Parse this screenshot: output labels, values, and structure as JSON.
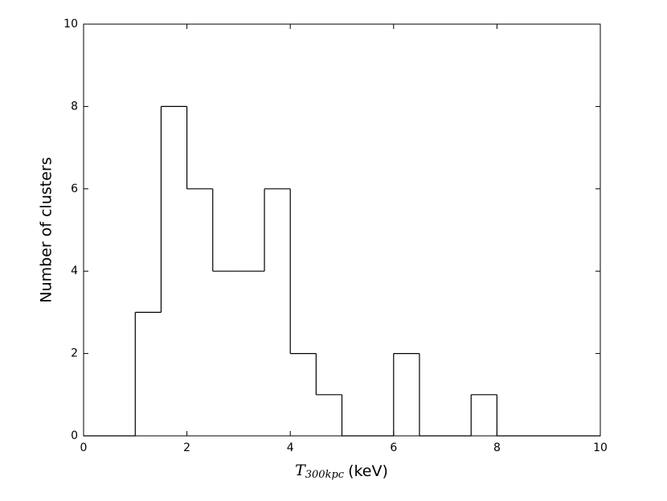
{
  "chart_data": {
    "type": "histogram",
    "bins": [
      0,
      0.5,
      1,
      1.5,
      2,
      2.5,
      3,
      3.5,
      4,
      4.5,
      5,
      5.5,
      6,
      6.5,
      7,
      7.5,
      8,
      8.5,
      9,
      9.5,
      10
    ],
    "values": [
      0,
      0,
      3,
      8,
      6,
      4,
      4,
      6,
      2,
      1,
      0,
      0,
      2,
      0,
      0,
      1,
      0,
      0,
      0,
      0
    ],
    "color": "#000000",
    "xlabel": [
      "T",
      "300kpc",
      "(keV)"
    ],
    "ylabel": "Number of clusters",
    "xlim": [
      0,
      10
    ],
    "xticks": [
      0,
      2,
      4,
      6,
      8,
      10
    ],
    "ylim": [
      0,
      10
    ],
    "yticks": [
      0,
      2,
      4,
      6,
      8,
      10
    ],
    "grid": false
  }
}
